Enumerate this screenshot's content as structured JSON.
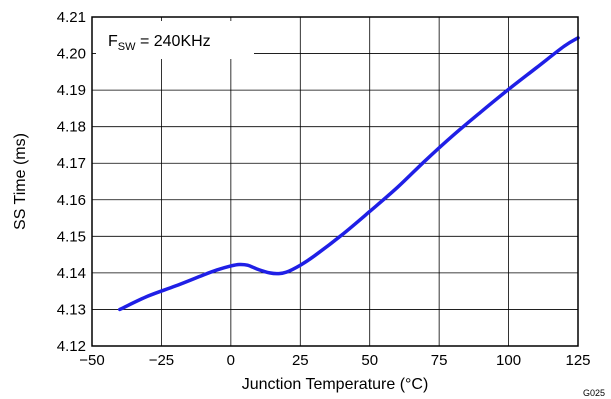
{
  "chart_data": {
    "type": "line",
    "xlabel": "Junction Temperature (°C)",
    "ylabel": "SS Time (ms)",
    "xlim": [
      -50,
      125
    ],
    "ylim": [
      4.12,
      4.21
    ],
    "x_ticks": [
      -50,
      -25,
      0,
      25,
      50,
      75,
      100,
      125
    ],
    "x_tick_labels": [
      "−50",
      "−25",
      "0",
      "25",
      "50",
      "75",
      "100",
      "125"
    ],
    "y_ticks": [
      4.12,
      4.13,
      4.14,
      4.15,
      4.16,
      4.17,
      4.18,
      4.19,
      4.2,
      4.21
    ],
    "y_tick_labels": [
      "4.12",
      "4.13",
      "4.14",
      "4.15",
      "4.16",
      "4.17",
      "4.18",
      "4.19",
      "4.20",
      "4.21"
    ],
    "grid": true,
    "annotation": {
      "main": "F",
      "sub": "SW",
      "rest": " = 240KHz"
    },
    "figure_id": "G025",
    "line_color": "#1f1fe6",
    "series": [
      {
        "x": [
          -40,
          -30,
          -20,
          -10,
          -5,
          0,
          3,
          6,
          10,
          14,
          17,
          20,
          25,
          30,
          40,
          50,
          60,
          70,
          80,
          90,
          100,
          110,
          120,
          125
        ],
        "y": [
          4.13,
          4.1336,
          4.1364,
          4.1394,
          4.1408,
          4.1419,
          4.1423,
          4.1421,
          4.1409,
          4.14,
          4.1398,
          4.1402,
          4.1421,
          4.1446,
          4.1504,
          4.1568,
          4.1634,
          4.1707,
          4.1776,
          4.184,
          4.1902,
          4.1961,
          4.202,
          4.2043
        ]
      }
    ]
  }
}
